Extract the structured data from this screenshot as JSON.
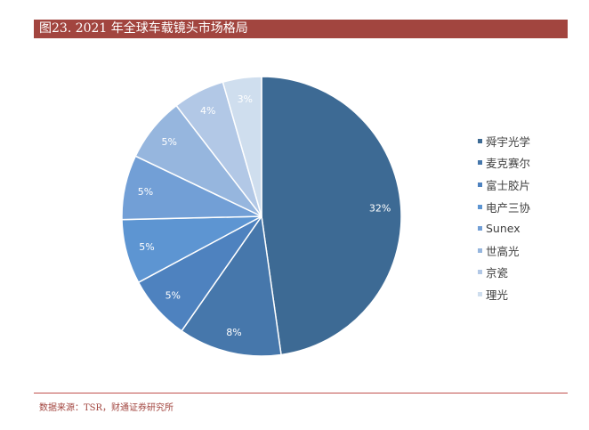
{
  "header": {
    "title": "图23. 2021 年全球车载镜头市场格局"
  },
  "chart_data": {
    "type": "pie",
    "labels": [
      "舜宇光学",
      "麦克赛尔",
      "富士胶片",
      "电产三协",
      "Sunex",
      "世高光",
      "京瓷",
      "理光"
    ],
    "values": [
      32,
      8,
      5,
      5,
      5,
      5,
      4,
      3
    ],
    "value_labels": [
      "32%",
      "8%",
      "5%",
      "5%",
      "5%",
      "5%",
      "4%",
      "3%"
    ],
    "colors": [
      "#3d6a94",
      "#4677ab",
      "#4e82bf",
      "#5d95d2",
      "#729fd6",
      "#96b6de",
      "#b2c8e6",
      "#cfdeee"
    ],
    "legend": "right"
  },
  "footer": {
    "source": "数据来源：TSR，财通证券研究所"
  }
}
